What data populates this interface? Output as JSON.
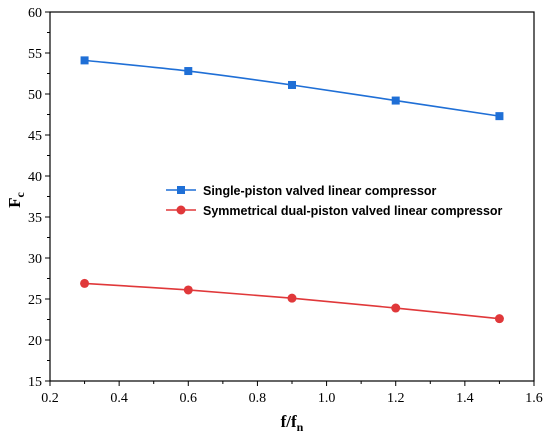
{
  "chart_data": {
    "type": "line",
    "x": [
      0.3,
      0.6,
      0.9,
      1.2,
      1.5
    ],
    "xlabel": {
      "main": "f/f",
      "sub": "n"
    },
    "ylabel": {
      "main": "F",
      "sub": "c"
    },
    "xlim": [
      0.2,
      1.6
    ],
    "ylim": [
      15,
      60
    ],
    "x_ticks": [
      "0.2",
      "0.4",
      "0.6",
      "0.8",
      "1.0",
      "1.2",
      "1.4",
      "1.6"
    ],
    "y_ticks": [
      "15",
      "20",
      "25",
      "30",
      "35",
      "40",
      "45",
      "50",
      "55",
      "60"
    ],
    "grid": false,
    "legend_position": "center-right",
    "series": [
      {
        "name": "Single-piston valved linear compressor",
        "values": [
          54.1,
          52.8,
          51.1,
          49.2,
          47.3
        ],
        "color": "#1f6fd6",
        "marker": "square"
      },
      {
        "name": "Symmetrical dual-piston valved linear compressor",
        "values": [
          26.9,
          26.1,
          25.1,
          23.9,
          22.6
        ],
        "color": "#e0383a",
        "marker": "circle"
      }
    ]
  }
}
